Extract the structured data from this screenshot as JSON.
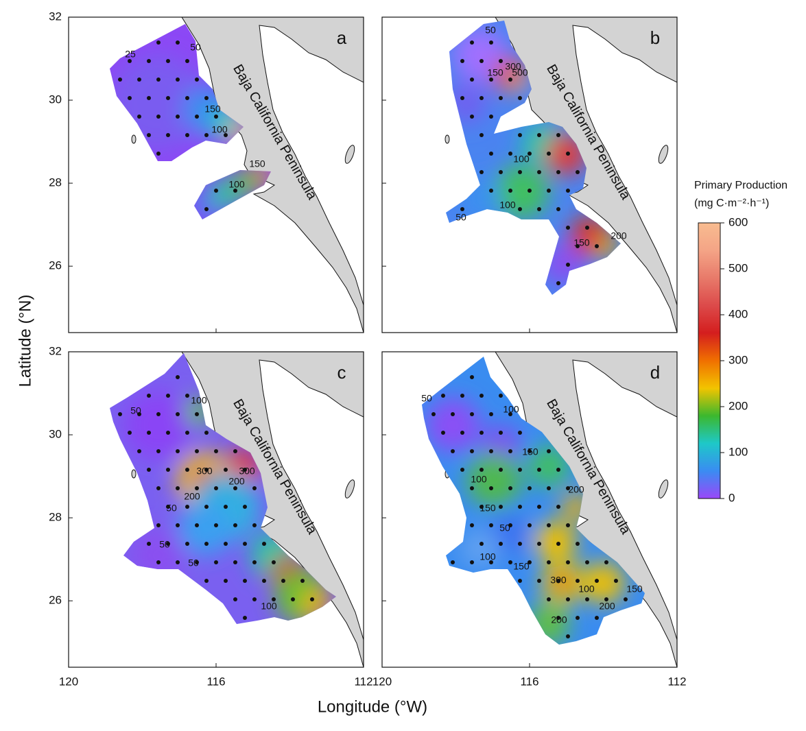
{
  "axes": {
    "x_label": "Longitude (°W)",
    "y_label": "Latitude (°N)",
    "xlim": [
      120,
      112
    ],
    "ylim": [
      24.4,
      32
    ],
    "xticks": [
      120,
      116,
      112
    ],
    "yticks": [
      32,
      30,
      28,
      26
    ]
  },
  "panels": [
    {
      "letter": "a",
      "region_label": "Baja California Peninsula",
      "contour_labels": [
        25,
        50,
        150,
        100,
        150,
        100
      ]
    },
    {
      "letter": "b",
      "region_label": "Baja California Peninsula",
      "contour_labels": [
        50,
        150,
        300,
        500,
        100,
        100,
        50,
        150,
        200
      ]
    },
    {
      "letter": "c",
      "region_label": "Baja California Peninsula",
      "contour_labels": [
        100,
        50,
        300,
        300,
        200,
        200,
        50,
        50,
        50,
        100
      ]
    },
    {
      "letter": "d",
      "region_label": "Baja California Peninsula",
      "contour_labels": [
        50,
        100,
        150,
        100,
        150,
        200,
        50,
        100,
        150,
        300,
        100,
        200,
        150,
        200
      ]
    }
  ],
  "colorbar": {
    "title": "Primary Production",
    "unit": "(mg C·m⁻²·h⁻¹)",
    "lim": [
      0,
      600
    ],
    "ticks": [
      0,
      100,
      200,
      300,
      400,
      500,
      600
    ],
    "colors": [
      "#9a48f8",
      "#3a8cf2",
      "#1ec8c8",
      "#3cb82e",
      "#f2c400",
      "#f07000",
      "#d41e1e",
      "#dc4a4a",
      "#e87a6a",
      "#f4a486",
      "#f8bc90"
    ]
  }
}
